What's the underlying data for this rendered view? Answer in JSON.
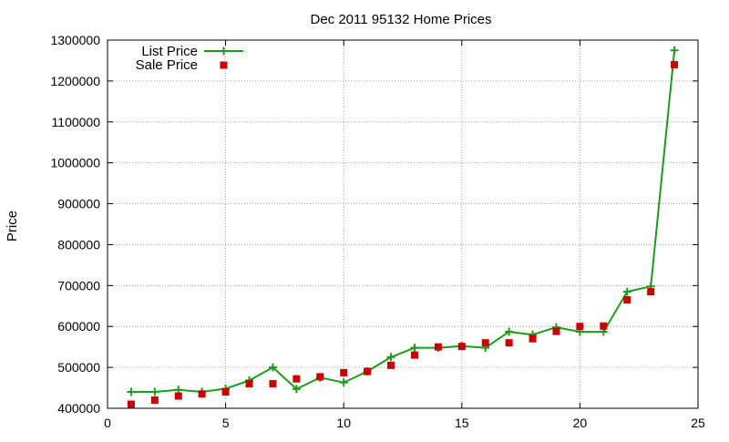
{
  "chart_data": {
    "type": "line",
    "title": "Dec 2011 95132 Home Prices",
    "xlabel": "",
    "ylabel": "Price",
    "xlim": [
      0,
      25
    ],
    "ylim": [
      400000,
      1300000
    ],
    "xticks": [
      0,
      5,
      10,
      15,
      20,
      25
    ],
    "yticks": [
      400000,
      500000,
      600000,
      700000,
      800000,
      900000,
      1000000,
      1100000,
      1200000,
      1300000
    ],
    "grid": true,
    "legend_position": "top-left",
    "colors": {
      "list": "#1a9e1a",
      "sale": "#cc0000"
    },
    "series": [
      {
        "name": "List Price",
        "style": "line-with-plus-markers",
        "x": [
          1,
          2,
          3,
          4,
          5,
          6,
          7,
          8,
          9,
          10,
          11,
          12,
          13,
          14,
          15,
          16,
          17,
          18,
          19,
          20,
          21,
          22,
          23,
          24
        ],
        "values": [
          440000,
          440000,
          445000,
          440000,
          448000,
          468000,
          500000,
          447000,
          475000,
          463000,
          490000,
          525000,
          548000,
          548000,
          552000,
          548000,
          587000,
          580000,
          598000,
          587000,
          587000,
          685000,
          698000,
          1275000
        ]
      },
      {
        "name": "Sale Price",
        "style": "square-markers",
        "x": [
          1,
          2,
          3,
          4,
          5,
          6,
          7,
          8,
          9,
          10,
          11,
          12,
          13,
          14,
          15,
          16,
          17,
          18,
          19,
          20,
          21,
          22,
          23,
          24
        ],
        "values": [
          410000,
          420000,
          430000,
          435000,
          440000,
          460000,
          460000,
          472000,
          477000,
          487000,
          490000,
          505000,
          530000,
          550000,
          551000,
          560000,
          560000,
          570000,
          588000,
          600000,
          601000,
          665000,
          685000,
          1240000
        ]
      }
    ]
  }
}
